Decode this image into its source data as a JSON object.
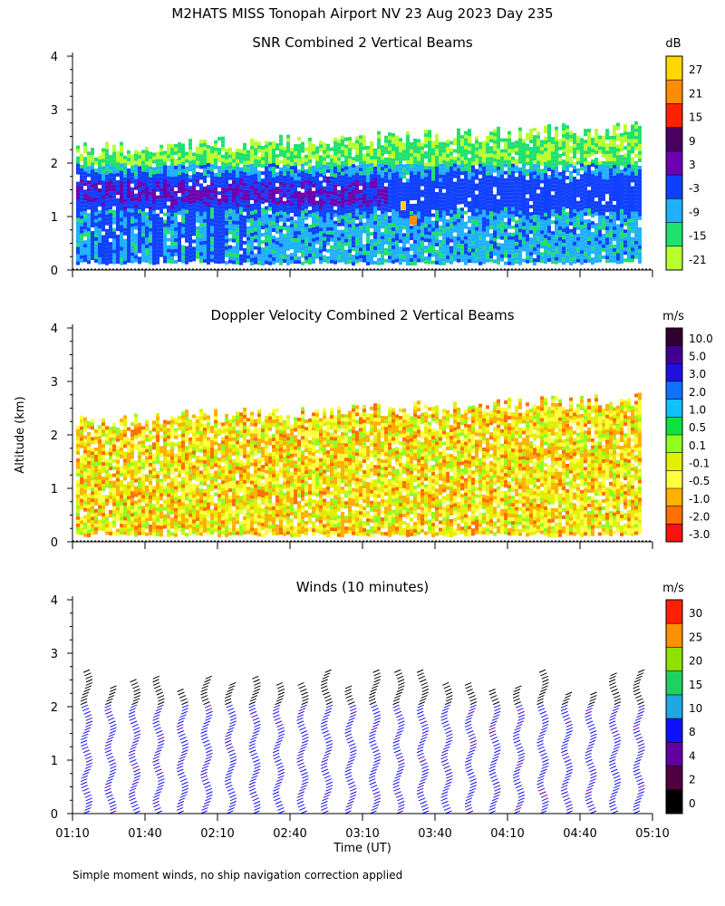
{
  "figure": {
    "title": "M2HATS MISS Tonopah Airport NV  23 Aug 2023 Day 235",
    "ylabel": "Altitude (km)",
    "xlabel": "Time (UT)",
    "footnote": "Simple moment winds, no ship navigation correction applied",
    "x_ticks": [
      "01:10",
      "01:40",
      "02:10",
      "02:40",
      "03:10",
      "03:40",
      "04:10",
      "04:40",
      "05:10"
    ]
  },
  "chart_data": [
    {
      "type": "heatmap",
      "title": "SNR Combined 2 Vertical Beams",
      "units": "dB",
      "ylim": [
        0,
        4
      ],
      "y_ticks": [
        "0",
        "1",
        "2",
        "3",
        "4"
      ],
      "colorbar": {
        "labels": [
          "27",
          "21",
          "15",
          "9",
          "3",
          "-3",
          "-9",
          "-15",
          "-21"
        ],
        "colors": [
          "#ffd700",
          "#ff8c00",
          "#ff2000",
          "#4a0060",
          "#6a00b0",
          "#1040ff",
          "#20b0ff",
          "#20e070",
          "#b8ff30"
        ]
      },
      "description_layers": {
        "echo_top_km": 2.3,
        "strong_layer_km": [
          1.1,
          1.8
        ],
        "surface_km": 0.15
      }
    },
    {
      "type": "heatmap",
      "title": "Doppler Velocity Combined 2 Vertical Beams",
      "units": "m/s",
      "ylim": [
        0,
        4
      ],
      "y_ticks": [
        "0",
        "1",
        "2",
        "3",
        "4"
      ],
      "colorbar": {
        "labels": [
          "10.0",
          "5.0",
          "3.0",
          "2.0",
          "1.0",
          "0.5",
          "0.1",
          "-0.1",
          "-0.5",
          "-1.0",
          "-2.0",
          "-3.0"
        ],
        "colors": [
          "#300030",
          "#400090",
          "#2010e0",
          "#1070ff",
          "#10c0ff",
          "#10e040",
          "#90ff20",
          "#e0f000",
          "#ffff40",
          "#ffb000",
          "#ff7000",
          "#ff1010"
        ]
      }
    },
    {
      "type": "scatter",
      "title": "Winds (10 minutes)",
      "units": "m/s",
      "ylim": [
        0,
        4
      ],
      "y_ticks": [
        "0",
        "1",
        "2",
        "3",
        "4"
      ],
      "colorbar": {
        "labels": [
          "30",
          "25",
          "20",
          "15",
          "10",
          "8",
          "4",
          "2",
          "0"
        ],
        "colors": [
          "#ff2000",
          "#ff9000",
          "#90e000",
          "#20d060",
          "#20a8e0",
          "#1010ff",
          "#6000a0",
          "#500040",
          "#000000"
        ]
      }
    }
  ]
}
